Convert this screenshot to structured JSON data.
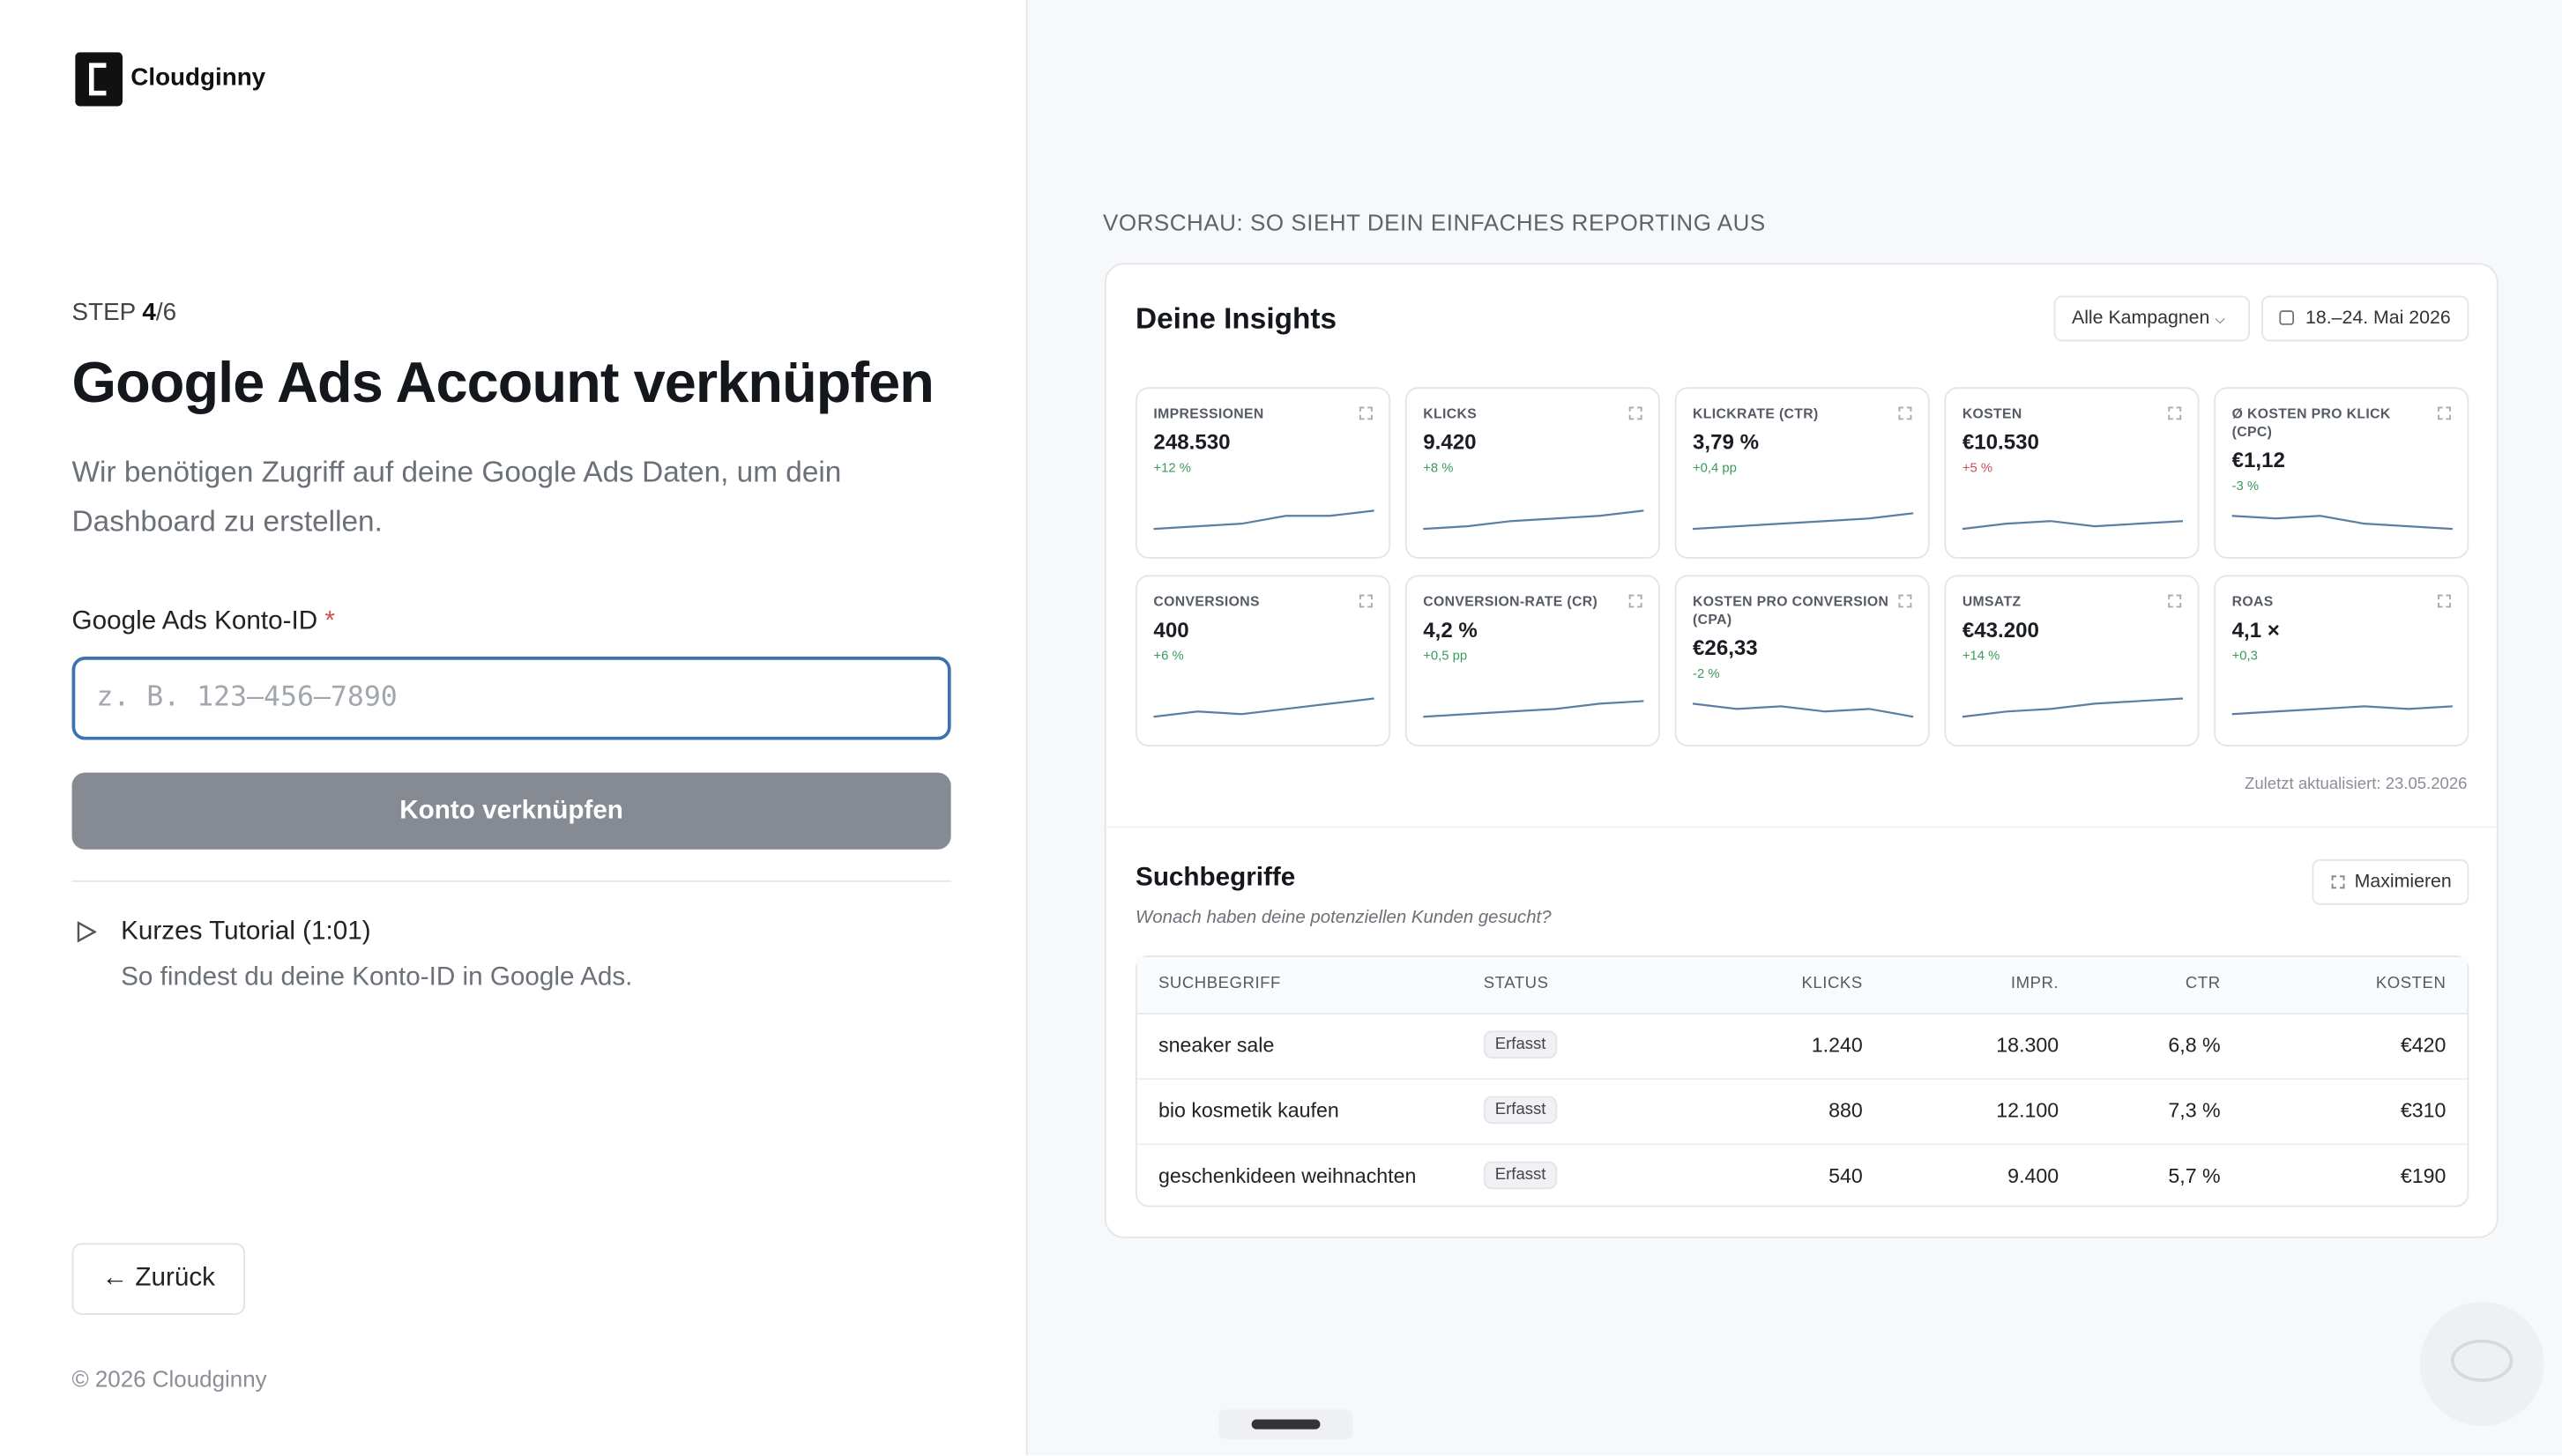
{
  "brand": "Cloudginny",
  "step": {
    "prefix": "STEP",
    "current": "4",
    "total": "/6"
  },
  "heading": "Google Ads Account verknüpfen",
  "description": "Wir benötigen Zugriff auf deine Google Ads Daten, um dein Dashboard zu erstellen.",
  "field": {
    "label": "Google Ads Konto-ID",
    "required": "*",
    "placeholder": "z. B. 123–456–7890"
  },
  "button": "Konto verknüpfen",
  "tutorial": {
    "title": "Kurzes Tutorial (1:01)",
    "text": "So findest du deine Konto-ID in Google Ads."
  },
  "back": "Zurück",
  "footer": "© 2026 Cloudginny",
  "preview": {
    "caption": "VORSCHAU: SO SIEHT DEIN EINFACHES REPORTING AUS",
    "title": "Deine Insights",
    "filter": "Alle Kampagnen",
    "date": "18.–24. Mai 2026",
    "metrics": [
      {
        "label": "IMPRESSIONEN",
        "value": "248.530",
        "change": "+12 %",
        "color": "#3a9a5c"
      },
      {
        "label": "KLICKS",
        "value": "9.420",
        "change": "+8 %",
        "color": "#3a9a5c"
      },
      {
        "label": "KLICKRATE (CTR)",
        "value": "3,79 %",
        "change": "+0,4 pp",
        "color": "#3a9a5c"
      },
      {
        "label": "KOSTEN",
        "value": "€10.530",
        "change": "+5 %",
        "color": "#d0504c"
      },
      {
        "label": "Ø KOSTEN PRO KLICK (CPC)",
        "value": "€1,12",
        "change": "-3 %",
        "color": "#3a9a5c"
      },
      {
        "label": "CONVERSIONS",
        "value": "400",
        "change": "+6 %",
        "color": "#3a9a5c"
      },
      {
        "label": "CONVERSION-RATE (CR)",
        "value": "4,2 %",
        "change": "+0,5 pp",
        "color": "#3a9a5c"
      },
      {
        "label": "KOSTEN PRO CONVERSION (CPA)",
        "value": "€26,33",
        "change": "-2 %",
        "color": "#3a9a5c"
      },
      {
        "label": "UMSATZ",
        "value": "€43.200",
        "change": "+14 %",
        "color": "#3a9a5c"
      },
      {
        "label": "ROAS",
        "value": "4,1 ×",
        "change": "+0,3",
        "color": "#3a9a5c"
      }
    ],
    "updated": "Zuletzt aktualisiert: 23.05.2026",
    "search": {
      "title": "Suchbegriffe",
      "subtitle": "Wonach haben deine potenziellen Kunden gesucht?",
      "maximize": "Maximieren",
      "columns": [
        "SUCHBEGRIFF",
        "STATUS",
        "KLICKS",
        "IMPR.",
        "CTR",
        "KOSTEN"
      ],
      "rows": [
        [
          "sneaker sale",
          "Erfasst",
          "1.240",
          "18.300",
          "6,8 %",
          "€420"
        ],
        [
          "bio kosmetik kaufen",
          "Erfasst",
          "880",
          "12.100",
          "7,3 %",
          "€310"
        ],
        [
          "geschenkideen weihnachten",
          "Erfasst",
          "540",
          "9.400",
          "5,7 %",
          "€190"
        ]
      ]
    }
  }
}
